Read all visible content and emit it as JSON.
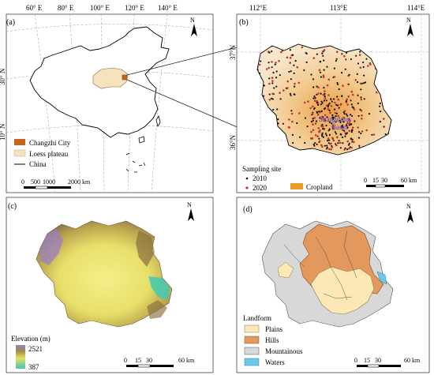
{
  "panels": {
    "a": {
      "label": "(a)",
      "top_ticks": [
        "60° E",
        "80° E",
        "100° E",
        "120° E",
        "140° E"
      ],
      "left_ticks": [
        "30° N",
        "10° N"
      ],
      "legend": [
        "Changzhi City",
        "Loess plateau",
        "China"
      ],
      "scale": [
        "0",
        "500",
        "1000",
        "2000 km"
      ],
      "north": "N"
    },
    "b": {
      "label": "(b)",
      "top_ticks": [
        "112°E",
        "113°E",
        "114°E"
      ],
      "left_ticks": [
        "37°N",
        "36°N"
      ],
      "basin_label_line1": "Shangdang",
      "basin_label_line2": "Basin",
      "legend_title": "Sampling site",
      "legend_items": [
        "2010",
        "2020",
        "Cropland"
      ],
      "scale": [
        "0",
        "15",
        "30",
        "60 km"
      ],
      "north": "N"
    },
    "c": {
      "label": "(c)",
      "legend_title": "Elevation (m)",
      "elev_max": "2521",
      "elev_min": "387",
      "scale": [
        "0",
        "15",
        "30",
        "60 km"
      ],
      "north": "N"
    },
    "d": {
      "label": "(d)",
      "legend_title": "Landform",
      "legend_items": [
        "Plains",
        "Hills",
        "Mountainous",
        "Waters"
      ],
      "scale": [
        "0",
        "15",
        "30",
        "60 km"
      ],
      "north": "N"
    }
  },
  "colors": {
    "changzhi": "#c8641e",
    "loess": "#f6e3bd",
    "cropland": "#e89c2c",
    "plains": "#fbe8b4",
    "hills": "#e3995e",
    "mountainous": "#d8d8d8",
    "waters": "#6cc8ea"
  }
}
